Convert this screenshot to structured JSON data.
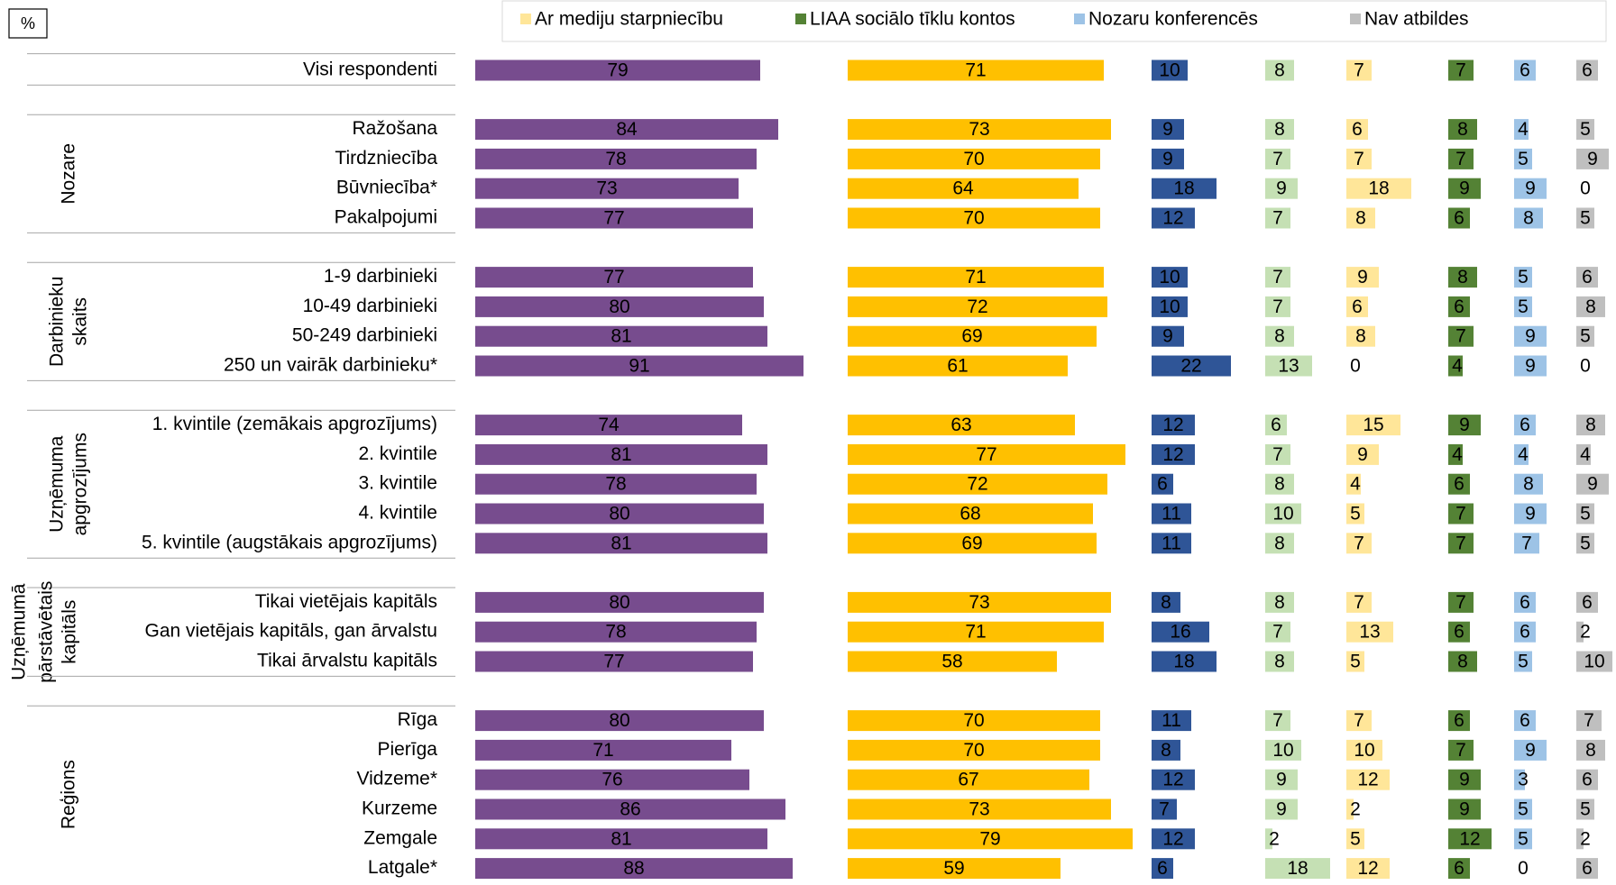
{
  "chart_data": {
    "type": "bar",
    "axis_label": "%",
    "series": [
      {
        "color": "#774c8e"
      },
      {
        "color": "#ffc000"
      },
      {
        "color": "#2f5597"
      },
      {
        "color": "#c5e0b4"
      },
      {
        "name": "Ar mediju starpniecību",
        "color": "#ffe699"
      },
      {
        "name": "LIAA sociālo tīklu kontos",
        "color": "#548235"
      },
      {
        "name": "Nozaru konferencēs",
        "color": "#9dc3e6"
      },
      {
        "name": "Nav atbildes",
        "color": "#bfbfbf"
      }
    ],
    "groups": [
      {
        "rows": [
          {
            "name": "Visi respondenti",
            "values": [
              79,
              71,
              10,
              8,
              7,
              7,
              6,
              6
            ]
          }
        ]
      },
      {
        "label": [
          "Nozare"
        ],
        "rows": [
          {
            "name": "Ražošana",
            "values": [
              84,
              73,
              9,
              8,
              6,
              8,
              4,
              5
            ]
          },
          {
            "name": "Tirdzniecība",
            "values": [
              78,
              70,
              9,
              7,
              7,
              7,
              5,
              9
            ]
          },
          {
            "name": "Būvniecība*",
            "values": [
              73,
              64,
              18,
              9,
              18,
              9,
              9,
              0
            ]
          },
          {
            "name": "Pakalpojumi",
            "values": [
              77,
              70,
              12,
              7,
              8,
              6,
              8,
              5
            ]
          }
        ]
      },
      {
        "label": [
          "Darbinieku",
          "skaits"
        ],
        "rows": [
          {
            "name": "1-9 darbinieki",
            "values": [
              77,
              71,
              10,
              7,
              9,
              8,
              5,
              6
            ]
          },
          {
            "name": "10-49 darbinieki",
            "values": [
              80,
              72,
              10,
              7,
              6,
              6,
              5,
              8
            ]
          },
          {
            "name": "50-249 darbinieki",
            "values": [
              81,
              69,
              9,
              8,
              8,
              7,
              9,
              5
            ]
          },
          {
            "name": "250 un vairāk darbinieku*",
            "values": [
              91,
              61,
              22,
              13,
              0,
              4,
              9,
              0
            ]
          }
        ]
      },
      {
        "label": [
          "Uzņēmuma",
          "apgrozījums"
        ],
        "rows": [
          {
            "name": "1. kvintile (zemākais apgrozījums)",
            "values": [
              74,
              63,
              12,
              6,
              15,
              9,
              6,
              8
            ]
          },
          {
            "name": "2. kvintile",
            "values": [
              81,
              77,
              12,
              7,
              9,
              4,
              4,
              4
            ]
          },
          {
            "name": "3. kvintile",
            "values": [
              78,
              72,
              6,
              8,
              4,
              6,
              8,
              9
            ]
          },
          {
            "name": "4. kvintile",
            "values": [
              80,
              68,
              11,
              10,
              5,
              7,
              9,
              5
            ]
          },
          {
            "name": "5. kvintile (augstākais apgrozījums)",
            "values": [
              81,
              69,
              11,
              8,
              7,
              7,
              7,
              5
            ]
          }
        ]
      },
      {
        "label": [
          "Uzņēmumā",
          "pārstāvētais",
          "kapitāls"
        ],
        "rows": [
          {
            "name": "Tikai vietējais kapitāls",
            "values": [
              80,
              73,
              8,
              8,
              7,
              7,
              6,
              6
            ]
          },
          {
            "name": "Gan vietējais kapitāls, gan ārvalstu",
            "values": [
              78,
              71,
              16,
              7,
              13,
              6,
              6,
              2
            ]
          },
          {
            "name": "Tikai ārvalstu kapitāls",
            "values": [
              77,
              58,
              18,
              8,
              5,
              8,
              5,
              10
            ]
          }
        ]
      },
      {
        "label": [
          "Reģions"
        ],
        "rows": [
          {
            "name": "Rīga",
            "values": [
              80,
              70,
              11,
              7,
              7,
              6,
              6,
              7
            ]
          },
          {
            "name": "Pierīga",
            "values": [
              71,
              70,
              8,
              10,
              10,
              7,
              9,
              8
            ]
          },
          {
            "name": "Vidzeme*",
            "values": [
              76,
              67,
              12,
              9,
              12,
              9,
              3,
              6
            ]
          },
          {
            "name": "Kurzeme",
            "values": [
              86,
              73,
              7,
              9,
              2,
              9,
              5,
              5
            ]
          },
          {
            "name": "Zemgale",
            "values": [
              81,
              79,
              12,
              2,
              5,
              12,
              5,
              2
            ]
          },
          {
            "name": "Latgale*",
            "values": [
              88,
              59,
              6,
              18,
              12,
              6,
              0,
              6
            ]
          }
        ]
      }
    ]
  }
}
